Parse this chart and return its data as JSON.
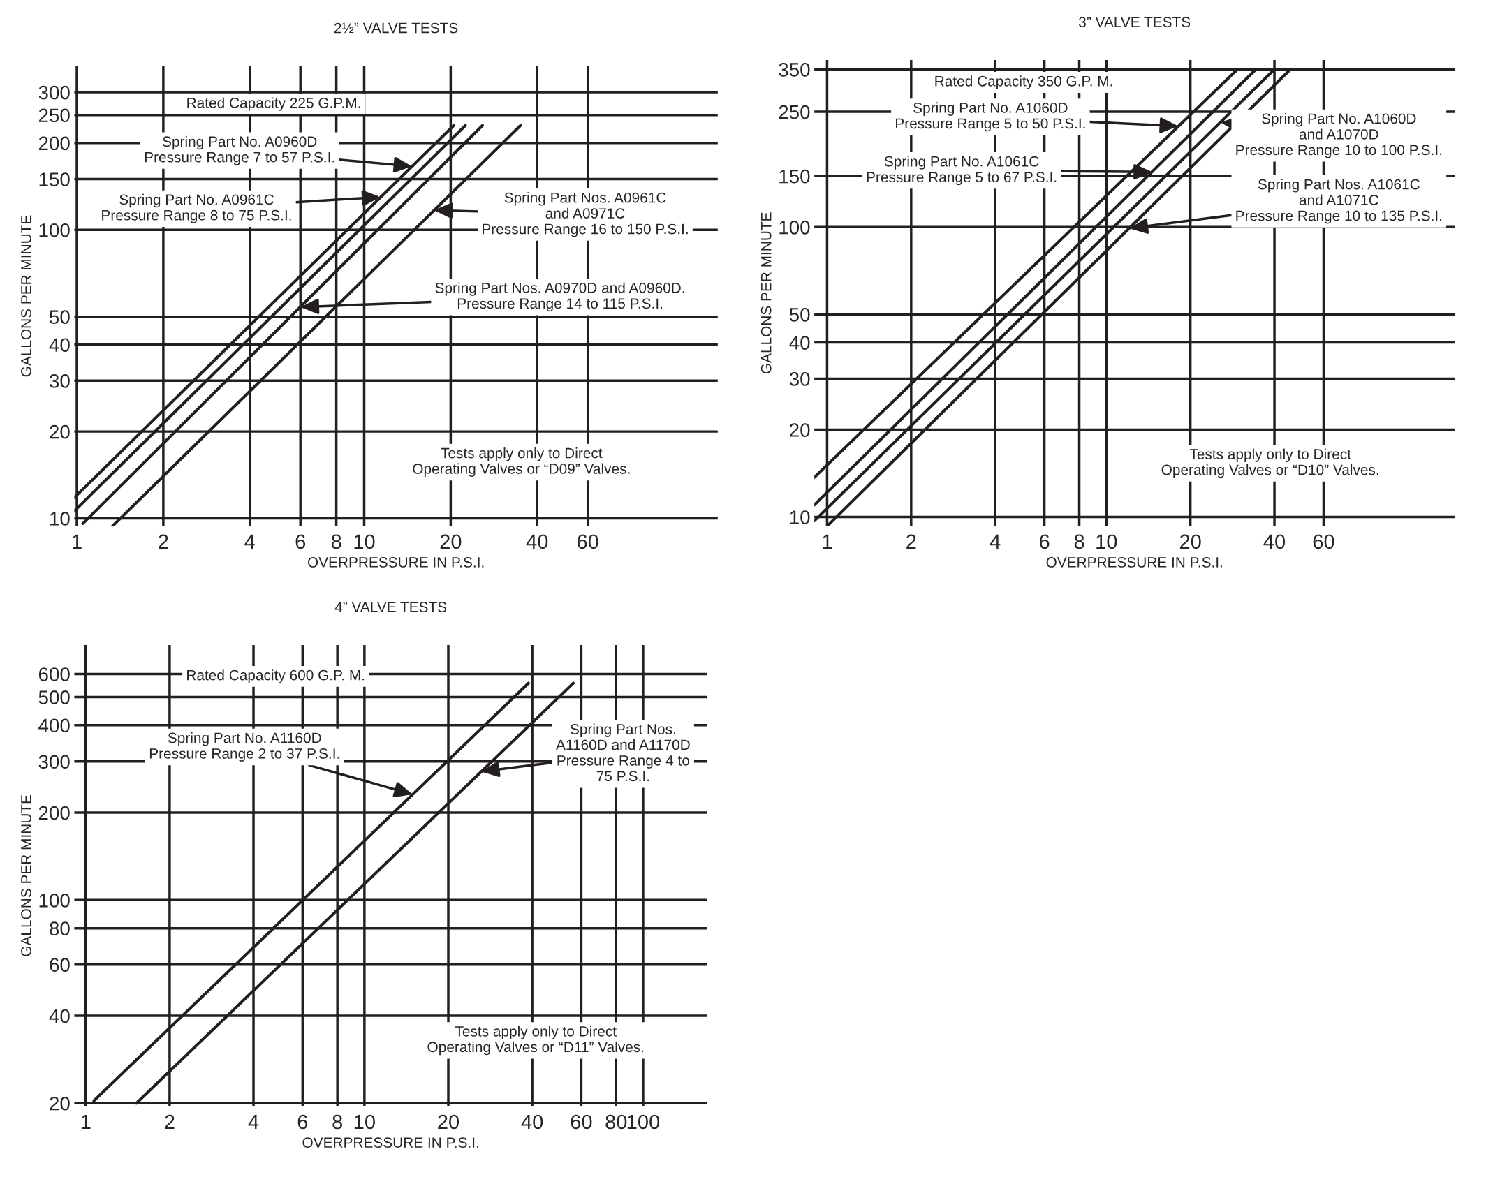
{
  "chart_data": [
    {
      "type": "line",
      "title": "2½” VALVE TESTS",
      "xlabel": "OVERPRESSURE IN P.S.I.",
      "ylabel": "GALLONS PER MINUTE",
      "log": "xy",
      "grid": true,
      "xlim": [
        0.98,
        170
      ],
      "ylim": [
        9.4,
        370
      ],
      "xticks": [
        1,
        2,
        4,
        6,
        8,
        10,
        20,
        40,
        60
      ],
      "yticks": [
        10,
        20,
        30,
        40,
        50,
        100,
        150,
        200,
        250,
        300
      ],
      "series": [
        {
          "color": "#231f20",
          "x": [
            0.98,
            20.5
          ],
          "values": [
            11.8,
            230
          ]
        },
        {
          "color": "#231f20",
          "x": [
            0.98,
            22.5
          ],
          "values": [
            10.6,
            230
          ]
        },
        {
          "color": "#231f20",
          "x": [
            1.05,
            25.8
          ],
          "values": [
            9.6,
            230
          ]
        },
        {
          "color": "#231f20",
          "x": [
            1.33,
            35
          ],
          "values": [
            9.4,
            230
          ]
        }
      ],
      "annotations": [
        "Rated Capacity 225 G.P.M.",
        {
          "text": "Spring Part No. A0960D\nPressure Range 7 to 57 P.S.I.",
          "x": 14.7,
          "y": 166
        },
        {
          "text": "Spring Part No. A0961C\nPressure Range 8 to 75 P.S.I.",
          "x": 11.4,
          "y": 130
        },
        {
          "text": "Spring Part Nos. A0961C\nand A0971C\nPressure Range 16 to 150 P.S.I.",
          "x": 17.5,
          "y": 117
        },
        {
          "text": "Spring Part Nos. A0970D and A0960D.\nPressure Range 14 to 115 P.S.I.",
          "x": 6.0,
          "y": 54
        },
        "Tests apply only to Direct\nOperating Valves or “D09” Valves."
      ]
    },
    {
      "type": "line",
      "title": "3” VALVE TESTS",
      "xlabel": "OVERPRESSURE IN P.S.I.",
      "ylabel": "GALLONS PER MINUTE",
      "log": "xy",
      "grid": true,
      "xlim": [
        0.9,
        177
      ],
      "ylim": [
        9.3,
        377
      ],
      "xticks": [
        1,
        2,
        4,
        6,
        8,
        10,
        20,
        40,
        60
      ],
      "yticks": [
        10,
        20,
        30,
        40,
        50,
        100,
        150,
        250,
        350
      ],
      "series": [
        {
          "color": "#231f20",
          "x": [
            0.9,
            29.2
          ],
          "values": [
            13.7,
            347
          ]
        },
        {
          "color": "#231f20",
          "x": [
            0.9,
            34.0
          ],
          "values": [
            11.0,
            347
          ]
        },
        {
          "color": "#231f20",
          "x": [
            0.9,
            39.6
          ],
          "values": [
            9.7,
            347
          ]
        },
        {
          "color": "#231f20",
          "x": [
            1.0,
            45.2
          ],
          "values": [
            9.3,
            347
          ]
        }
      ],
      "annotations": [
        "Rated Capacity 350 G.P. M.",
        {
          "text": "Spring Part No. A1060D\nPressure Range 5 to 50 P.S.I.",
          "x": 18.1,
          "y": 223
        },
        {
          "text": "Spring Part No. A1061C\nPressure Range 5 to 67 P.S.I.",
          "x": 14.6,
          "y": 155
        },
        {
          "text": "Spring Part No. A1060D\nand A1070D\nPressure Range 10 to 100 P.S.I.",
          "x": 25.6,
          "y": 230
        },
        {
          "text": "Spring Part Nos. A1061C\nand A1071C\nPressure Range 10 to 135 P.S.I.",
          "x": 12.1,
          "y": 99
        },
        "Tests apply only to Direct\nOperating Valves or “D10” Valves."
      ]
    },
    {
      "type": "line",
      "title": "4” VALVE TESTS",
      "xlabel": "OVERPRESSURE IN P.S.I.",
      "ylabel": "GALLONS PER MINUTE",
      "log": "xy",
      "grid": true,
      "xlim": [
        0.91,
        170
      ],
      "ylim": [
        19.5,
        755
      ],
      "xticks": [
        1,
        2,
        4,
        6,
        8,
        10,
        20,
        40,
        60,
        80,
        100
      ],
      "yticks": [
        20,
        40,
        60,
        80,
        100,
        200,
        300,
        400,
        500,
        600
      ],
      "series": [
        {
          "color": "#231f20",
          "x": [
            1.07,
            38.8
          ],
          "values": [
            20.4,
            558
          ]
        },
        {
          "color": "#231f20",
          "x": [
            1.52,
            56.2
          ],
          "values": [
            20,
            558
          ]
        }
      ],
      "annotations": [
        "Rated Capacity 600 G.P. M.",
        {
          "text": "Spring Part No. A1160D\nPressure Range 2 to 37 P.S.I.",
          "x": 14.9,
          "y": 231
        },
        {
          "text": "Spring Part Nos.\nA1160D and A1170D\nPressure Range 4 to\n75 P.S.I.",
          "x": 26.2,
          "y": 277
        },
        "Tests apply only to Direct\nOperating Valves or “D11” Valves."
      ]
    }
  ]
}
